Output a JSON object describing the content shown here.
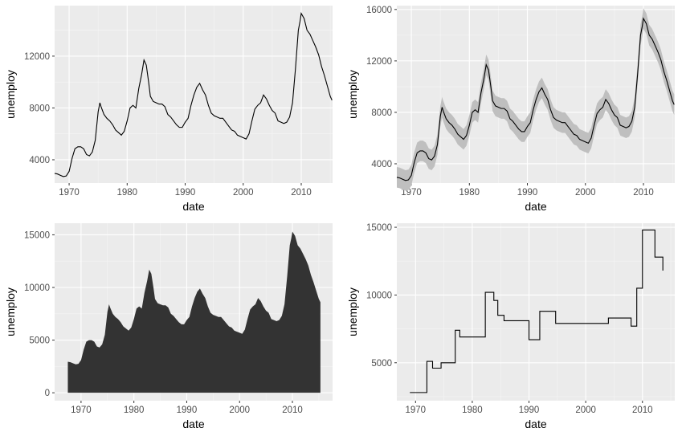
{
  "chart_data": [
    {
      "type": "line",
      "xlabel": "date",
      "ylabel": "unemploy",
      "grid": true,
      "xlim": [
        1967.5,
        2015.4
      ],
      "ylim": [
        2200,
        15900
      ],
      "xticks": [
        1970,
        1980,
        1990,
        2000,
        2010
      ],
      "xtick_labels": [
        "1970",
        "1980",
        "1990",
        "2000",
        "2010"
      ],
      "yticks": [
        4000,
        8000,
        12000
      ],
      "ytick_labels": [
        "4000",
        "8000",
        "12000"
      ],
      "line_color": "#000000",
      "series": [
        {
          "x": [
            1967.5,
            1968.0,
            1968.5,
            1969.0,
            1969.5,
            1970.0,
            1970.5,
            1971.0,
            1971.5,
            1972.0,
            1972.5,
            1973.0,
            1973.5,
            1974.0,
            1974.5,
            1975.0,
            1975.3,
            1975.5,
            1976.0,
            1976.5,
            1977.0,
            1977.5,
            1978.0,
            1978.5,
            1979.0,
            1979.5,
            1980.0,
            1980.5,
            1981.0,
            1981.5,
            1982.0,
            1982.5,
            1982.9,
            1983.3,
            1983.7,
            1984.0,
            1984.5,
            1985.0,
            1985.5,
            1986.0,
            1986.5,
            1987.0,
            1987.5,
            1988.0,
            1988.5,
            1989.0,
            1989.5,
            1990.0,
            1990.5,
            1991.0,
            1991.5,
            1992.0,
            1992.5,
            1993.0,
            1993.5,
            1994.0,
            1994.5,
            1995.0,
            1995.5,
            1996.0,
            1996.5,
            1997.0,
            1997.5,
            1998.0,
            1998.5,
            1999.0,
            1999.5,
            2000.0,
            2000.5,
            2001.0,
            2001.5,
            2002.0,
            2002.5,
            2003.0,
            2003.5,
            2004.0,
            2004.5,
            2005.0,
            2005.5,
            2006.0,
            2006.5,
            2007.0,
            2007.5,
            2008.0,
            2008.5,
            2009.0,
            2009.5,
            2009.8,
            2010.0,
            2010.5,
            2011.0,
            2011.5,
            2012.0,
            2012.5,
            2013.0,
            2013.5,
            2014.0,
            2014.5,
            2015.0,
            2015.3
          ],
          "y": [
            2950,
            2900,
            2800,
            2700,
            2750,
            3100,
            4100,
            4850,
            5000,
            5000,
            4850,
            4400,
            4300,
            4600,
            5500,
            7700,
            8400,
            8100,
            7500,
            7200,
            7000,
            6700,
            6300,
            6100,
            5900,
            6200,
            7000,
            8000,
            8200,
            8000,
            9500,
            10600,
            11700,
            11300,
            10000,
            8900,
            8500,
            8400,
            8300,
            8300,
            8100,
            7500,
            7300,
            7000,
            6700,
            6500,
            6500,
            6900,
            7200,
            8200,
            9000,
            9600,
            9900,
            9400,
            9000,
            8200,
            7600,
            7400,
            7300,
            7200,
            7200,
            6900,
            6600,
            6300,
            6200,
            5900,
            5800,
            5700,
            5600,
            6000,
            7000,
            7900,
            8200,
            8400,
            9000,
            8700,
            8200,
            7800,
            7600,
            7000,
            6900,
            6800,
            6900,
            7300,
            8400,
            11000,
            14000,
            14700,
            15300,
            14900,
            14000,
            13700,
            13200,
            12700,
            12100,
            11200,
            10500,
            9700,
            8900,
            8600
          ]
        }
      ]
    },
    {
      "type": "line",
      "xlabel": "date",
      "ylabel": "unemploy",
      "grid": true,
      "xlim": [
        1967.5,
        2015.4
      ],
      "ylim": [
        2500,
        16300
      ],
      "xticks": [
        1970,
        1980,
        1990,
        2000,
        2010
      ],
      "xtick_labels": [
        "1970",
        "1980",
        "1990",
        "2000",
        "2010"
      ],
      "yticks": [
        4000,
        8000,
        12000,
        16000
      ],
      "ytick_labels": [
        "4000",
        "8000",
        "12000",
        "16000"
      ],
      "line_color": "#000000",
      "band_color": "#bfbfbf",
      "band_halfwidth": 800,
      "series": [
        {
          "x": [
            1967.5,
            1968.0,
            1968.5,
            1969.0,
            1969.5,
            1970.0,
            1970.5,
            1971.0,
            1971.5,
            1972.0,
            1972.5,
            1973.0,
            1973.5,
            1974.0,
            1974.5,
            1975.0,
            1975.3,
            1975.5,
            1976.0,
            1976.5,
            1977.0,
            1977.5,
            1978.0,
            1978.5,
            1979.0,
            1979.5,
            1980.0,
            1980.5,
            1981.0,
            1981.5,
            1982.0,
            1982.5,
            1982.9,
            1983.3,
            1983.7,
            1984.0,
            1984.5,
            1985.0,
            1985.5,
            1986.0,
            1986.5,
            1987.0,
            1987.5,
            1988.0,
            1988.5,
            1989.0,
            1989.5,
            1990.0,
            1990.5,
            1991.0,
            1991.5,
            1992.0,
            1992.5,
            1993.0,
            1993.5,
            1994.0,
            1994.5,
            1995.0,
            1995.5,
            1996.0,
            1996.5,
            1997.0,
            1997.5,
            1998.0,
            1998.5,
            1999.0,
            1999.5,
            2000.0,
            2000.5,
            2001.0,
            2001.5,
            2002.0,
            2002.5,
            2003.0,
            2003.5,
            2004.0,
            2004.5,
            2005.0,
            2005.5,
            2006.0,
            2006.5,
            2007.0,
            2007.5,
            2008.0,
            2008.5,
            2009.0,
            2009.5,
            2009.8,
            2010.0,
            2010.5,
            2011.0,
            2011.5,
            2012.0,
            2012.5,
            2013.0,
            2013.5,
            2014.0,
            2014.5,
            2015.0,
            2015.3
          ],
          "y": [
            2950,
            2900,
            2800,
            2700,
            2750,
            3100,
            4100,
            4850,
            5000,
            5000,
            4850,
            4400,
            4300,
            4600,
            5500,
            7700,
            8400,
            8100,
            7500,
            7200,
            7000,
            6700,
            6300,
            6100,
            5900,
            6200,
            7000,
            8000,
            8200,
            8000,
            9500,
            10600,
            11700,
            11300,
            10000,
            8900,
            8500,
            8400,
            8300,
            8300,
            8100,
            7500,
            7300,
            7000,
            6700,
            6500,
            6500,
            6900,
            7200,
            8200,
            9000,
            9600,
            9900,
            9400,
            9000,
            8200,
            7600,
            7400,
            7300,
            7200,
            7200,
            6900,
            6600,
            6300,
            6200,
            5900,
            5800,
            5700,
            5600,
            6000,
            7000,
            7900,
            8200,
            8400,
            9000,
            8700,
            8200,
            7800,
            7600,
            7000,
            6900,
            6800,
            6900,
            7300,
            8400,
            11000,
            14000,
            14700,
            15300,
            14900,
            14000,
            13700,
            13200,
            12700,
            12100,
            11200,
            10500,
            9700,
            8900,
            8600
          ]
        }
      ]
    },
    {
      "type": "area",
      "xlabel": "date",
      "ylabel": "unemploy",
      "grid": true,
      "xlim": [
        1965.0,
        2017.6
      ],
      "ylim": [
        -750,
        16100
      ],
      "xticks": [
        1970,
        1980,
        1990,
        2000,
        2010
      ],
      "xtick_labels": [
        "1970",
        "1980",
        "1990",
        "2000",
        "2010"
      ],
      "yticks": [
        0,
        5000,
        10000,
        15000
      ],
      "ytick_labels": [
        "0",
        "5000",
        "10000",
        "15000"
      ],
      "fill_color": "#333333",
      "series": [
        {
          "x": [
            1967.5,
            1968.0,
            1968.5,
            1969.0,
            1969.5,
            1970.0,
            1970.5,
            1971.0,
            1971.5,
            1972.0,
            1972.5,
            1973.0,
            1973.5,
            1974.0,
            1974.5,
            1975.0,
            1975.3,
            1975.5,
            1976.0,
            1976.5,
            1977.0,
            1977.5,
            1978.0,
            1978.5,
            1979.0,
            1979.5,
            1980.0,
            1980.5,
            1981.0,
            1981.5,
            1982.0,
            1982.5,
            1982.9,
            1983.3,
            1983.7,
            1984.0,
            1984.5,
            1985.0,
            1985.5,
            1986.0,
            1986.5,
            1987.0,
            1987.5,
            1988.0,
            1988.5,
            1989.0,
            1989.5,
            1990.0,
            1990.5,
            1991.0,
            1991.5,
            1992.0,
            1992.5,
            1993.0,
            1993.5,
            1994.0,
            1994.5,
            1995.0,
            1995.5,
            1996.0,
            1996.5,
            1997.0,
            1997.5,
            1998.0,
            1998.5,
            1999.0,
            1999.5,
            2000.0,
            2000.5,
            2001.0,
            2001.5,
            2002.0,
            2002.5,
            2003.0,
            2003.5,
            2004.0,
            2004.5,
            2005.0,
            2005.5,
            2006.0,
            2006.5,
            2007.0,
            2007.5,
            2008.0,
            2008.5,
            2009.0,
            2009.5,
            2009.8,
            2010.0,
            2010.5,
            2011.0,
            2011.5,
            2012.0,
            2012.5,
            2013.0,
            2013.5,
            2014.0,
            2014.5,
            2015.0,
            2015.3
          ],
          "y": [
            2950,
            2900,
            2800,
            2700,
            2750,
            3100,
            4100,
            4850,
            5000,
            5000,
            4850,
            4400,
            4300,
            4600,
            5500,
            7700,
            8400,
            8100,
            7500,
            7200,
            7000,
            6700,
            6300,
            6100,
            5900,
            6200,
            7000,
            8000,
            8200,
            8000,
            9500,
            10600,
            11700,
            11300,
            10000,
            8900,
            8500,
            8400,
            8300,
            8300,
            8100,
            7500,
            7300,
            7000,
            6700,
            6500,
            6500,
            6900,
            7200,
            8200,
            9000,
            9600,
            9900,
            9400,
            9000,
            8200,
            7600,
            7400,
            7300,
            7200,
            7200,
            6900,
            6600,
            6300,
            6200,
            5900,
            5800,
            5700,
            5600,
            6000,
            7000,
            7900,
            8200,
            8400,
            9000,
            8700,
            8200,
            7800,
            7600,
            7000,
            6900,
            6800,
            6900,
            7300,
            8400,
            11000,
            14000,
            14700,
            15300,
            14900,
            14000,
            13700,
            13200,
            12700,
            12100,
            11200,
            10500,
            9700,
            8900,
            8600
          ]
        }
      ]
    },
    {
      "type": "line",
      "step": true,
      "xlabel": "date",
      "ylabel": "unemploy",
      "grid": true,
      "xlim": [
        1966.7,
        2015.7
      ],
      "ylim": [
        2200,
        15300
      ],
      "xticks": [
        1970,
        1980,
        1990,
        2000,
        2010
      ],
      "xtick_labels": [
        "1970",
        "1980",
        "1990",
        "2000",
        "2010"
      ],
      "yticks": [
        5000,
        10000,
        15000
      ],
      "ytick_labels": [
        "5000",
        "10000",
        "15000"
      ],
      "line_color": "#000000",
      "series": [
        {
          "x": [
            1969.0,
            1972.0,
            1973.0,
            1974.5,
            1977.0,
            1977.8,
            1982.3,
            1983.8,
            1984.5,
            1985.6,
            1990.0,
            1991.9,
            1994.7,
            2004.0,
            2008.0,
            2009.0,
            2010.0,
            2012.2,
            2013.6
          ],
          "y": [
            2800,
            5100,
            4600,
            5000,
            7400,
            6900,
            10200,
            9600,
            8500,
            8100,
            6700,
            8800,
            7900,
            8300,
            7700,
            10500,
            14800,
            12800,
            11800
          ]
        }
      ]
    }
  ]
}
